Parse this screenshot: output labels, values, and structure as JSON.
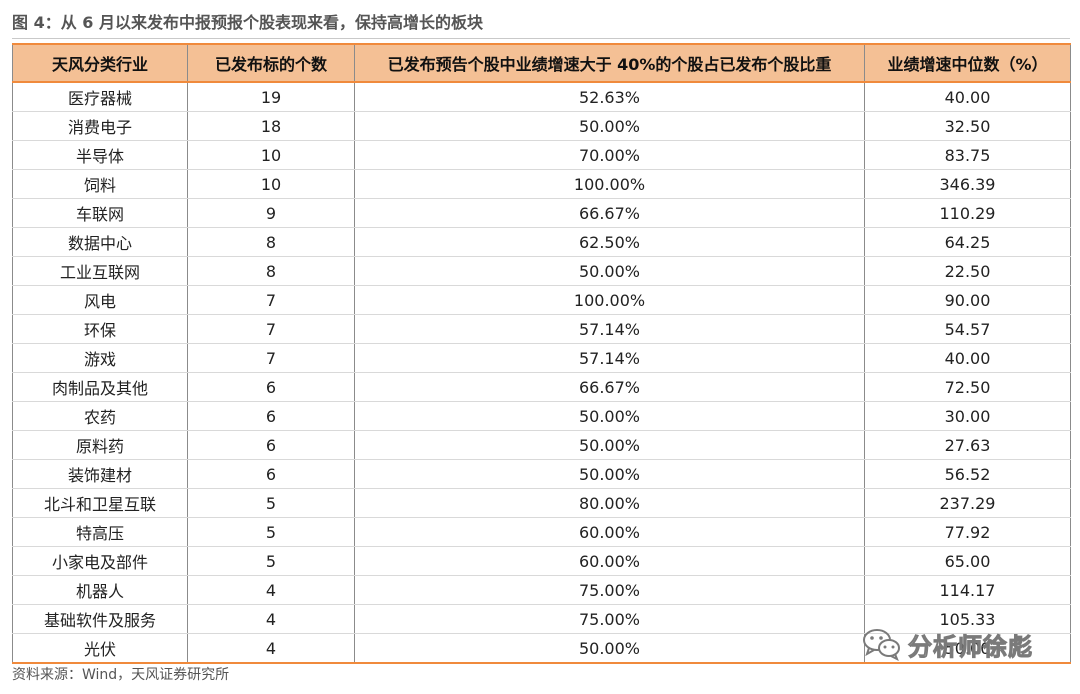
{
  "figure_title": "图 4：从 6 月以来发布中报预报个股表现来看，保持高增长的板块",
  "table": {
    "headers": [
      "天风分类行业",
      "已发布标的个数",
      "已发布预告个股中业绩增速大于 40%的个股占已发布个股比重",
      "业绩增速中位数（%）"
    ],
    "rows": [
      [
        "医疗器械",
        "19",
        "52.63%",
        "40.00"
      ],
      [
        "消费电子",
        "18",
        "50.00%",
        "32.50"
      ],
      [
        "半导体",
        "10",
        "70.00%",
        "83.75"
      ],
      [
        "饲料",
        "10",
        "100.00%",
        "346.39"
      ],
      [
        "车联网",
        "9",
        "66.67%",
        "110.29"
      ],
      [
        "数据中心",
        "8",
        "62.50%",
        "64.25"
      ],
      [
        "工业互联网",
        "8",
        "50.00%",
        "22.50"
      ],
      [
        "风电",
        "7",
        "100.00%",
        "90.00"
      ],
      [
        "环保",
        "7",
        "57.14%",
        "54.57"
      ],
      [
        "游戏",
        "7",
        "57.14%",
        "40.00"
      ],
      [
        "肉制品及其他",
        "6",
        "66.67%",
        "72.50"
      ],
      [
        "农药",
        "6",
        "50.00%",
        "30.00"
      ],
      [
        "原料药",
        "6",
        "50.00%",
        "27.63"
      ],
      [
        "装饰建材",
        "6",
        "50.00%",
        "56.52"
      ],
      [
        "北斗和卫星互联",
        "5",
        "80.00%",
        "237.29"
      ],
      [
        "特高压",
        "5",
        "60.00%",
        "77.92"
      ],
      [
        "小家电及部件",
        "5",
        "60.00%",
        "65.00"
      ],
      [
        "机器人",
        "4",
        "75.00%",
        "114.17"
      ],
      [
        "基础软件及服务",
        "4",
        "75.00%",
        "105.33"
      ],
      [
        "光伏",
        "4",
        "50.00%",
        "50.00"
      ]
    ]
  },
  "source": "资料来源：Wind，天风证券研究所",
  "watermark": {
    "text": "分析师徐彪",
    "icon": "wechat-icon"
  },
  "colors": {
    "header_bg": "#f4c095",
    "accent_line": "#f08a3c",
    "grid": "#8b8b8b"
  }
}
